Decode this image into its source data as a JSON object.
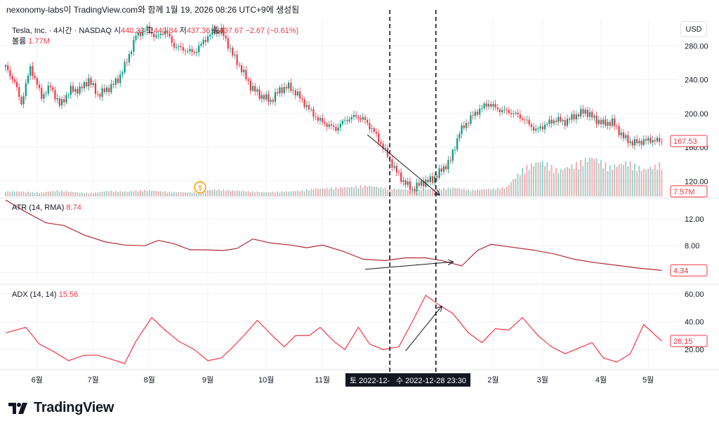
{
  "caption": "nexonomy-labs이 TradingView.com와 함께 1월 19, 2026 08:26 UTC+9에 생성됨",
  "currency_button": "USD",
  "brand": "TradingView",
  "main_pane": {
    "symbol": "Tesla, Inc. · 4시간 · NASDAQ",
    "open_label": "시",
    "open": "440.33",
    "high_label": "고",
    "high": "440.84",
    "low_label": "저",
    "low": "437.36",
    "close_label": "종",
    "close": "437.67",
    "change": "−2.67 (−0.61%)",
    "volume_label": "볼륨",
    "volume": "1.77M",
    "last_price_tag": "167.53",
    "volume_tag": "7.57M",
    "event_marker": "$"
  },
  "atr_pane": {
    "label": "ATR (14, RMA)",
    "value": "8.74",
    "tag": "4.34"
  },
  "adx_pane": {
    "label": "ADX (14, 14)",
    "value": "15.56",
    "tag": "26.15"
  },
  "crosshair": {
    "left_label": "토 2022-12-",
    "right_label": "수 2022-12-28   23:30"
  },
  "colors": {
    "up": "#089981",
    "down": "#f23645",
    "line": "#b22833",
    "adx": "#f23645",
    "axis_text": "#131722"
  },
  "chart_data": [
    {
      "type": "candlestick",
      "title": "Tesla, Inc. · 4시간 · NASDAQ",
      "x_tick_labels": [
        "6월",
        "7월",
        "8월",
        "9월",
        "10월",
        "11월",
        "2월",
        "3월",
        "4월",
        "5월"
      ],
      "y_ticks": [
        120,
        160,
        200,
        240,
        280
      ],
      "ylim": [
        102,
        311
      ],
      "close_path": [
        {
          "x": 0,
          "y": 255
        },
        {
          "x": 4,
          "y": 237
        },
        {
          "x": 7,
          "y": 212
        },
        {
          "x": 11,
          "y": 255
        },
        {
          "x": 16,
          "y": 220
        },
        {
          "x": 20,
          "y": 232
        },
        {
          "x": 24,
          "y": 210
        },
        {
          "x": 29,
          "y": 228
        },
        {
          "x": 33,
          "y": 228
        },
        {
          "x": 37,
          "y": 240
        },
        {
          "x": 41,
          "y": 222
        },
        {
          "x": 46,
          "y": 230
        },
        {
          "x": 50,
          "y": 240
        },
        {
          "x": 54,
          "y": 262
        },
        {
          "x": 58,
          "y": 292
        },
        {
          "x": 63,
          "y": 300
        },
        {
          "x": 67,
          "y": 290
        },
        {
          "x": 71,
          "y": 298
        },
        {
          "x": 75,
          "y": 280
        },
        {
          "x": 80,
          "y": 275
        },
        {
          "x": 84,
          "y": 272
        },
        {
          "x": 88,
          "y": 285
        },
        {
          "x": 92,
          "y": 297
        },
        {
          "x": 96,
          "y": 298
        },
        {
          "x": 101,
          "y": 270
        },
        {
          "x": 105,
          "y": 252
        },
        {
          "x": 109,
          "y": 232
        },
        {
          "x": 113,
          "y": 222
        },
        {
          "x": 118,
          "y": 215
        },
        {
          "x": 122,
          "y": 228
        },
        {
          "x": 126,
          "y": 232
        },
        {
          "x": 130,
          "y": 222
        },
        {
          "x": 135,
          "y": 205
        },
        {
          "x": 139,
          "y": 193
        },
        {
          "x": 143,
          "y": 187
        },
        {
          "x": 147,
          "y": 182
        },
        {
          "x": 151,
          "y": 192
        },
        {
          "x": 156,
          "y": 197
        },
        {
          "x": 160,
          "y": 192
        },
        {
          "x": 164,
          "y": 178
        },
        {
          "x": 168,
          "y": 160
        },
        {
          "x": 173,
          "y": 135
        },
        {
          "x": 177,
          "y": 120
        },
        {
          "x": 181,
          "y": 110
        },
        {
          "x": 185,
          "y": 118
        },
        {
          "x": 190,
          "y": 122
        },
        {
          "x": 194,
          "y": 133
        },
        {
          "x": 198,
          "y": 145
        },
        {
          "x": 202,
          "y": 178
        },
        {
          "x": 207,
          "y": 195
        },
        {
          "x": 211,
          "y": 205
        },
        {
          "x": 215,
          "y": 212
        },
        {
          "x": 219,
          "y": 205
        },
        {
          "x": 224,
          "y": 202
        },
        {
          "x": 228,
          "y": 198
        },
        {
          "x": 232,
          "y": 190
        },
        {
          "x": 236,
          "y": 180
        },
        {
          "x": 241,
          "y": 188
        },
        {
          "x": 245,
          "y": 193
        },
        {
          "x": 249,
          "y": 190
        },
        {
          "x": 253,
          "y": 197
        },
        {
          "x": 258,
          "y": 203
        },
        {
          "x": 262,
          "y": 194
        },
        {
          "x": 266,
          "y": 188
        },
        {
          "x": 270,
          "y": 190
        },
        {
          "x": 275,
          "y": 172
        },
        {
          "x": 279,
          "y": 165
        },
        {
          "x": 283,
          "y": 167
        },
        {
          "x": 287,
          "y": 169
        },
        {
          "x": 292,
          "y": 167
        }
      ]
    },
    {
      "type": "bar",
      "title": "볼륨",
      "series": [
        {
          "name": "볼륨",
          "values": [
            1.2,
            1.1,
            0.9,
            1.4,
            1.0,
            0.8,
            1.3,
            1.1,
            1.5,
            1.2,
            1.0,
            0.9,
            1.6,
            1.4,
            1.2,
            1.0,
            1.1,
            1.3,
            1.8,
            2.0,
            2.2,
            2.5,
            1.9,
            1.7,
            1.6,
            1.8,
            2.0,
            1.5,
            1.7,
            2.1,
            6.5,
            8.2,
            6.0,
            7.4,
            9.1,
            6.8,
            7.9,
            6.2,
            7.57
          ]
        }
      ]
    },
    {
      "type": "line",
      "title": "ATR (14, RMA)",
      "y_ticks": [
        4,
        8,
        12
      ],
      "ylim": [
        2.4,
        14.9
      ],
      "series": [
        {
          "name": "ATR (14, RMA)",
          "points": [
            {
              "x": 0,
              "y": 14.8
            },
            {
              "x": 9,
              "y": 13.0
            },
            {
              "x": 18,
              "y": 11.4
            },
            {
              "x": 26,
              "y": 11.0
            },
            {
              "x": 35,
              "y": 9.6
            },
            {
              "x": 44,
              "y": 8.6
            },
            {
              "x": 53,
              "y": 8.1
            },
            {
              "x": 62,
              "y": 8.0
            },
            {
              "x": 68,
              "y": 8.8
            },
            {
              "x": 75,
              "y": 8.3
            },
            {
              "x": 82,
              "y": 7.4
            },
            {
              "x": 88,
              "y": 7.4
            },
            {
              "x": 97,
              "y": 7.3
            },
            {
              "x": 103,
              "y": 7.6
            },
            {
              "x": 110,
              "y": 9.0
            },
            {
              "x": 118,
              "y": 8.4
            },
            {
              "x": 127,
              "y": 8.1
            },
            {
              "x": 134,
              "y": 7.7
            },
            {
              "x": 141,
              "y": 8.1
            },
            {
              "x": 150,
              "y": 7.2
            },
            {
              "x": 159,
              "y": 6.0
            },
            {
              "x": 169,
              "y": 5.8
            },
            {
              "x": 178,
              "y": 6.2
            },
            {
              "x": 187,
              "y": 6.2
            },
            {
              "x": 194,
              "y": 5.8
            },
            {
              "x": 203,
              "y": 5.0
            },
            {
              "x": 210,
              "y": 7.3
            },
            {
              "x": 216,
              "y": 8.2
            },
            {
              "x": 225,
              "y": 7.8
            },
            {
              "x": 234,
              "y": 7.4
            },
            {
              "x": 244,
              "y": 6.8
            },
            {
              "x": 253,
              "y": 6.0
            },
            {
              "x": 262,
              "y": 5.5
            },
            {
              "x": 272,
              "y": 5.1
            },
            {
              "x": 281,
              "y": 4.7
            },
            {
              "x": 292,
              "y": 4.34
            }
          ]
        }
      ]
    },
    {
      "type": "line",
      "title": "ADX (14, 14)",
      "y_ticks": [
        20,
        40,
        60
      ],
      "ylim": [
        6.5,
        66
      ],
      "series": [
        {
          "name": "ADX (14, 14)",
          "points": [
            {
              "x": 0,
              "y": 32
            },
            {
              "x": 9,
              "y": 36
            },
            {
              "x": 15,
              "y": 24
            },
            {
              "x": 22,
              "y": 18
            },
            {
              "x": 28,
              "y": 12
            },
            {
              "x": 35,
              "y": 16
            },
            {
              "x": 41,
              "y": 16
            },
            {
              "x": 47,
              "y": 13
            },
            {
              "x": 53,
              "y": 10
            },
            {
              "x": 58,
              "y": 26
            },
            {
              "x": 65,
              "y": 43
            },
            {
              "x": 71,
              "y": 34
            },
            {
              "x": 77,
              "y": 26
            },
            {
              "x": 84,
              "y": 20
            },
            {
              "x": 90,
              "y": 12
            },
            {
              "x": 96,
              "y": 14
            },
            {
              "x": 100,
              "y": 20
            },
            {
              "x": 106,
              "y": 30
            },
            {
              "x": 112,
              "y": 41
            },
            {
              "x": 120,
              "y": 28
            },
            {
              "x": 124,
              "y": 22
            },
            {
              "x": 129,
              "y": 30
            },
            {
              "x": 135,
              "y": 30
            },
            {
              "x": 140,
              "y": 36
            },
            {
              "x": 146,
              "y": 26
            },
            {
              "x": 151,
              "y": 20
            },
            {
              "x": 157,
              "y": 36
            },
            {
              "x": 162,
              "y": 24
            },
            {
              "x": 168,
              "y": 20
            },
            {
              "x": 175,
              "y": 22
            },
            {
              "x": 181,
              "y": 40
            },
            {
              "x": 187,
              "y": 59
            },
            {
              "x": 193,
              "y": 52
            },
            {
              "x": 199,
              "y": 46
            },
            {
              "x": 206,
              "y": 32
            },
            {
              "x": 212,
              "y": 25
            },
            {
              "x": 218,
              "y": 35
            },
            {
              "x": 224,
              "y": 34
            },
            {
              "x": 230,
              "y": 43
            },
            {
              "x": 237,
              "y": 30
            },
            {
              "x": 243,
              "y": 22
            },
            {
              "x": 249,
              "y": 17
            },
            {
              "x": 255,
              "y": 21
            },
            {
              "x": 261,
              "y": 25
            },
            {
              "x": 266,
              "y": 14
            },
            {
              "x": 272,
              "y": 11
            },
            {
              "x": 278,
              "y": 17
            },
            {
              "x": 284,
              "y": 38
            },
            {
              "x": 292,
              "y": 26.15
            }
          ]
        }
      ]
    }
  ]
}
